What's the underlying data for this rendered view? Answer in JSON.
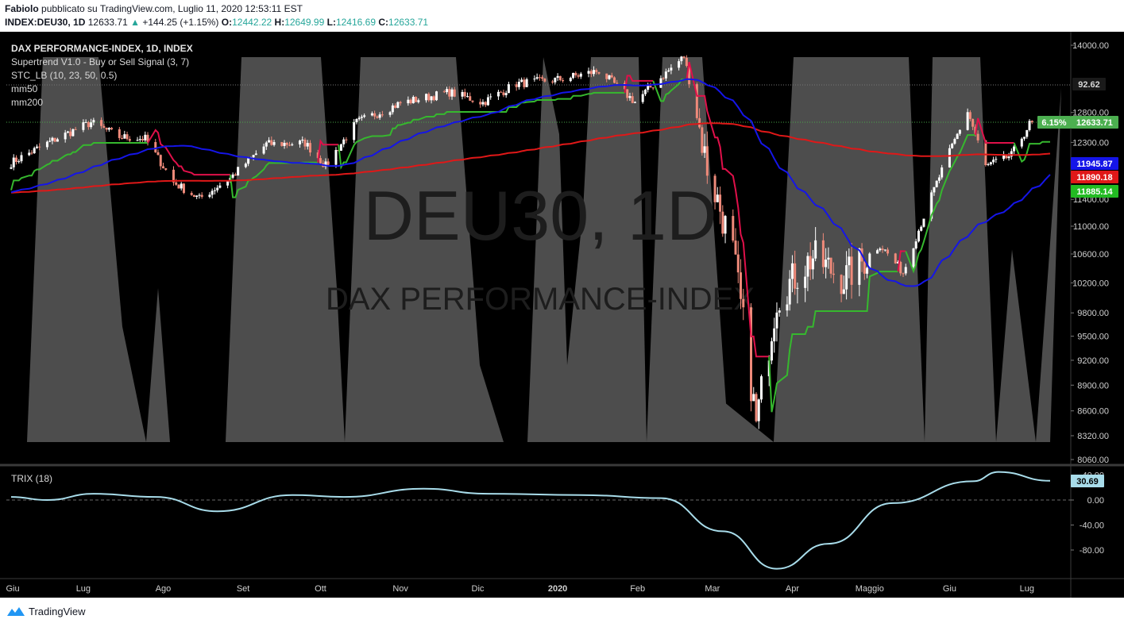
{
  "header": {
    "author": "Fabiolo",
    "published": "pubblicato su TradingView.com, Luglio 11, 2020 12:53:11 EST",
    "symbol": "INDEX:DEU30, 1D",
    "last": "12633.71",
    "change": "+144.25 (+1.15%)",
    "o_label": "O:",
    "o": "12442.22",
    "h_label": "H:",
    "h": "12649.99",
    "l_label": "L:",
    "l": "12416.69",
    "c_label": "C:",
    "c": "12633.71"
  },
  "legend": {
    "title": "DAX PERFORMANCE-INDEX, 1D, INDEX",
    "indicators": [
      "Supertrend V1.0 - Buy or Sell Signal (3, 7)",
      "STC_LB (10, 23, 50, 0.5)",
      "mm50",
      "mm200"
    ]
  },
  "watermark": {
    "symbol": "DEU30, 1D",
    "name": "DAX PERFORMANCE-INDEX"
  },
  "footer": {
    "brand": "TradingView"
  },
  "colors": {
    "background": "#000000",
    "candle_up": "#ffffff",
    "candle_down": "#ef8a7a",
    "mm50": "#1515e8",
    "mm200": "#e01818",
    "supertrend_up": "#36b82e",
    "supertrend_down": "#e0104a",
    "stc_fill": "#5a5a5a",
    "trix": "#a8dcea"
  },
  "chart_data": [
    {
      "type": "candlestick",
      "title": "DAX PERFORMANCE-INDEX, 1D, INDEX",
      "x_ticks": [
        "Giu",
        "Lug",
        "Ago",
        "Set",
        "Ott",
        "Nov",
        "Dic",
        "2020",
        "Feb",
        "Mar",
        "Apr",
        "Maggio",
        "Giu",
        "Lug"
      ],
      "y_ticks": [
        "14000.00",
        "12800.00",
        "12300.00",
        "11400.00",
        "11000.00",
        "10600.00",
        "10200.00",
        "9800.00",
        "9500.00",
        "9200.00",
        "8900.00",
        "8600.00",
        "8320.00",
        "8060.00"
      ],
      "ylim": [
        8060,
        14000
      ],
      "y_scale": "log",
      "close_series": [
        {
          "x": "2019-06-03",
          "y": 11970
        },
        {
          "x": "2019-06-20",
          "y": 12350
        },
        {
          "x": "2019-07-04",
          "y": 12630
        },
        {
          "x": "2019-07-15",
          "y": 12390
        },
        {
          "x": "2019-07-25",
          "y": 12360
        },
        {
          "x": "2019-08-05",
          "y": 11660
        },
        {
          "x": "2019-08-15",
          "y": 11410
        },
        {
          "x": "2019-08-27",
          "y": 11730
        },
        {
          "x": "2019-09-10",
          "y": 12270
        },
        {
          "x": "2019-09-25",
          "y": 12290
        },
        {
          "x": "2019-10-03",
          "y": 11920
        },
        {
          "x": "2019-10-15",
          "y": 12630
        },
        {
          "x": "2019-11-01",
          "y": 12960
        },
        {
          "x": "2019-11-20",
          "y": 13150
        },
        {
          "x": "2019-12-03",
          "y": 12970
        },
        {
          "x": "2019-12-16",
          "y": 13300
        },
        {
          "x": "2020-01-02",
          "y": 13380
        },
        {
          "x": "2020-01-17",
          "y": 13530
        },
        {
          "x": "2020-01-31",
          "y": 12980
        },
        {
          "x": "2020-02-19",
          "y": 13790
        },
        {
          "x": "2020-02-28",
          "y": 11890
        },
        {
          "x": "2020-03-09",
          "y": 10620
        },
        {
          "x": "2020-03-18",
          "y": 8440
        },
        {
          "x": "2020-03-26",
          "y": 10000
        },
        {
          "x": "2020-04-09",
          "y": 10560
        },
        {
          "x": "2020-04-21",
          "y": 10250
        },
        {
          "x": "2020-05-05",
          "y": 10730
        },
        {
          "x": "2020-05-14",
          "y": 10340
        },
        {
          "x": "2020-05-27",
          "y": 11650
        },
        {
          "x": "2020-06-08",
          "y": 12820
        },
        {
          "x": "2020-06-15",
          "y": 11910
        },
        {
          "x": "2020-06-25",
          "y": 12090
        },
        {
          "x": "2020-07-02",
          "y": 12600
        },
        {
          "x": "2020-07-10",
          "y": 12633.71
        }
      ],
      "last_price": 12633.71,
      "last_price_change": "6.15%",
      "mm50_last": 11945.87,
      "mm200_last": 11890.18,
      "supertrend_last": 11885.14,
      "stc_last": 92.62,
      "price_labels": [
        "92.62",
        "6.15%",
        "12633.71",
        "11945.87",
        "11890.18",
        "11885.14"
      ]
    },
    {
      "type": "line",
      "title": "TRIX (18)",
      "y_ticks": [
        "40.00",
        "0.00",
        "-40.00",
        "-80.00"
      ],
      "ylim": [
        -115,
        45
      ],
      "points": [
        {
          "x": "2019-06-03",
          "y": 5
        },
        {
          "x": "2019-06-17",
          "y": 0
        },
        {
          "x": "2019-07-05",
          "y": 10
        },
        {
          "x": "2019-07-29",
          "y": 5
        },
        {
          "x": "2019-08-22",
          "y": -18
        },
        {
          "x": "2019-09-20",
          "y": 8
        },
        {
          "x": "2019-10-10",
          "y": 5
        },
        {
          "x": "2019-11-10",
          "y": 18
        },
        {
          "x": "2019-12-05",
          "y": 10
        },
        {
          "x": "2020-01-10",
          "y": 8
        },
        {
          "x": "2020-02-10",
          "y": 3
        },
        {
          "x": "2020-03-05",
          "y": -50
        },
        {
          "x": "2020-03-26",
          "y": -110
        },
        {
          "x": "2020-04-15",
          "y": -70
        },
        {
          "x": "2020-05-10",
          "y": -5
        },
        {
          "x": "2020-06-10",
          "y": 30
        },
        {
          "x": "2020-06-20",
          "y": 45
        },
        {
          "x": "2020-07-10",
          "y": 30.69
        }
      ],
      "last_value": "30.69"
    }
  ]
}
